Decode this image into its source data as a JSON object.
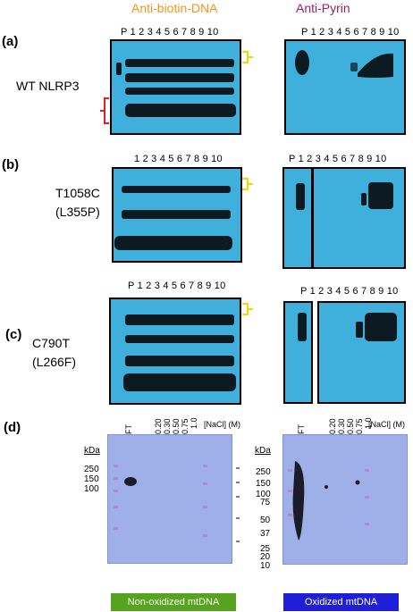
{
  "headers": {
    "left": "Anti-biotin-DNA",
    "right": "Anti-Pyrin"
  },
  "colors": {
    "left_header": "#f7941d",
    "right_header": "#9e1f63",
    "blot": "#3fb0dc",
    "membrane": "#9fb0e8",
    "green": "#55a31f",
    "blue": "#1f1fd8"
  },
  "panels": {
    "a": {
      "label": "(a)",
      "sample": "WT NLRP3",
      "lanes_left": "P  1 2 3 4 5 6 7 8 9 10",
      "lanes_right": "P  1 2 3 4 5 6 7 8 9 10"
    },
    "b": {
      "label": "(b)",
      "sample_line1": "T1058C",
      "sample_line2": "(L355P)",
      "lanes_left": "1 2 3 4 5 6 7 8 9 10",
      "lanes_right": "P 1 2 3 4 5 6 7 8 9 10"
    },
    "c": {
      "label": "(c)",
      "sample_line1": "C790T",
      "sample_line2": "(L266F)",
      "lanes_left": "P 1 2 3 4 5 6 7 8 9 10",
      "lanes_right": "P 1 2 3 4 5 6 7 8 9 10"
    },
    "d": {
      "label": "(d)",
      "kda_label": "kDa",
      "left_markers": [
        "250",
        "150",
        "100"
      ],
      "right_markers": [
        "250",
        "150",
        "100",
        "75",
        "50",
        "37",
        "25",
        "20",
        "10"
      ],
      "lanes": [
        "FT",
        "0.20",
        "0.30",
        "0.50",
        "0.75",
        "1.0"
      ],
      "nacl": "[NaCl] (M)",
      "left_caption": "Non-oxidized mtDNA",
      "right_caption": "Oxidized mtDNA"
    }
  }
}
